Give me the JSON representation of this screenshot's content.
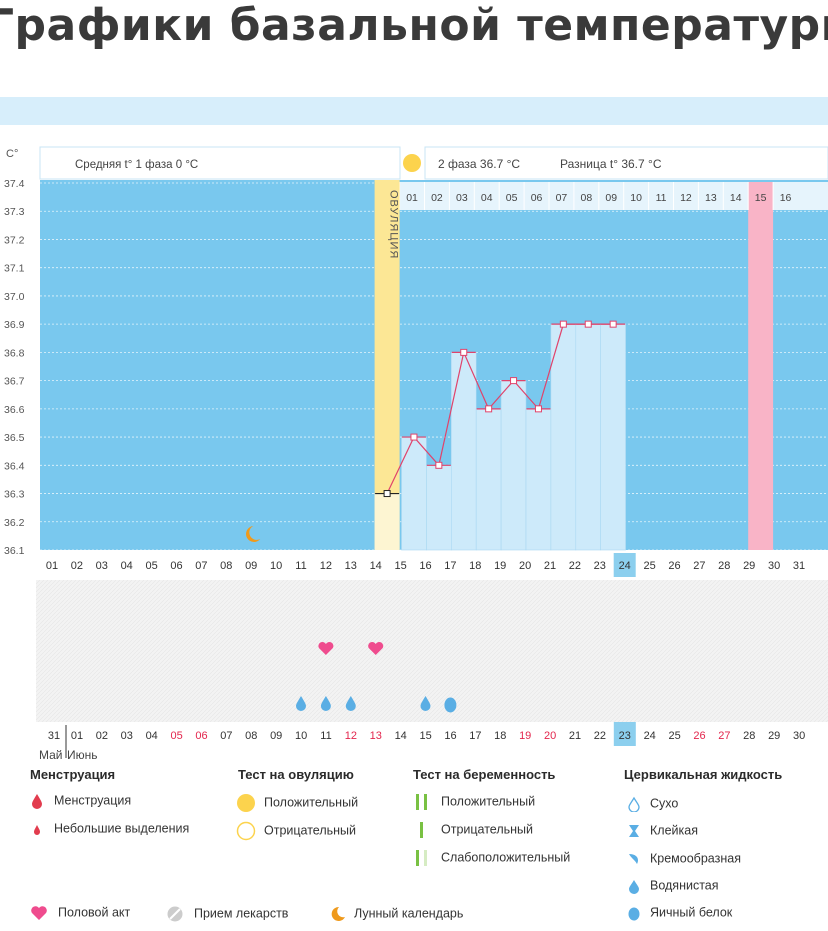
{
  "page": {
    "title": "Графики базальной температуры"
  },
  "header": {
    "unit": "C°",
    "phase1": "Средняя t° 1 фаза 0 °C",
    "phase2": "2 фаза 36.7 °C",
    "difference": "Разница t° 36.7 °C"
  },
  "colors": {
    "chart_bg": "#79c8ee",
    "phase2_bar": "#cdeafa",
    "ovulation": "#fce795",
    "ovulation_light": "#fdf5d2",
    "menstruation_pink": "#f9b4c7",
    "line": "#e0436b",
    "highlight_day": "#8ccfee",
    "heart": "#ef4c8e",
    "drop": "#5aaee4",
    "moon": "#ef9a1c",
    "sun": "#fcd34d",
    "test_green": "#79c143"
  },
  "chart_data": {
    "type": "line",
    "title": "Графики базальной температуры",
    "ylabel": "C°",
    "ylim": [
      36.1,
      37.4
    ],
    "y_ticks": [
      "37.4",
      "37.3",
      "37.2",
      "37.1",
      "37.0",
      "36.9",
      "36.8",
      "36.7",
      "36.6",
      "36.5",
      "36.4",
      "36.3",
      "36.2",
      "36.1"
    ],
    "cycle_days": [
      "01",
      "02",
      "03",
      "04",
      "05",
      "06",
      "07",
      "08",
      "09",
      "10",
      "11",
      "12",
      "13",
      "14",
      "15",
      "16",
      "17",
      "18",
      "19",
      "20",
      "21",
      "22",
      "23",
      "24",
      "25",
      "26",
      "27",
      "28",
      "29",
      "30",
      "31"
    ],
    "highlight_cycle_day": "24",
    "ovulation_day_index": 14,
    "ovulation_label": "ОВУЛЯЦИЯ",
    "phase2_days": [
      "01",
      "02",
      "03",
      "04",
      "05",
      "06",
      "07",
      "08",
      "09",
      "10",
      "11",
      "12",
      "13",
      "14",
      "15",
      "16"
    ],
    "phase2_pink_day": "15",
    "series": [
      {
        "name": "Температура",
        "points": [
          {
            "day_index": 14,
            "value": 36.3,
            "phase": "ovulation"
          },
          {
            "day_index": 15,
            "value": 36.5
          },
          {
            "day_index": 16,
            "value": 36.4
          },
          {
            "day_index": 17,
            "value": 36.8
          },
          {
            "day_index": 18,
            "value": 36.6
          },
          {
            "day_index": 19,
            "value": 36.7
          },
          {
            "day_index": 20,
            "value": 36.6
          },
          {
            "day_index": 21,
            "value": 36.9
          },
          {
            "day_index": 22,
            "value": 36.9
          },
          {
            "day_index": 23,
            "value": 36.9
          }
        ]
      }
    ],
    "moon_day_index": 8,
    "hearts_day_indices": [
      11,
      13
    ],
    "drops_day_indices": [
      10,
      11,
      12,
      15
    ],
    "egg_white_day_index": 16,
    "date_labels": [
      {
        "d": "31",
        "red": false
      },
      {
        "d": "01",
        "red": false
      },
      {
        "d": "02",
        "red": false
      },
      {
        "d": "03",
        "red": false
      },
      {
        "d": "04",
        "red": false
      },
      {
        "d": "05",
        "red": true
      },
      {
        "d": "06",
        "red": true
      },
      {
        "d": "07",
        "red": false
      },
      {
        "d": "08",
        "red": false
      },
      {
        "d": "09",
        "red": false
      },
      {
        "d": "10",
        "red": false
      },
      {
        "d": "11",
        "red": false
      },
      {
        "d": "12",
        "red": true
      },
      {
        "d": "13",
        "red": true
      },
      {
        "d": "14",
        "red": false
      },
      {
        "d": "15",
        "red": false
      },
      {
        "d": "16",
        "red": false
      },
      {
        "d": "17",
        "red": false
      },
      {
        "d": "18",
        "red": false
      },
      {
        "d": "19",
        "red": true
      },
      {
        "d": "20",
        "red": true
      },
      {
        "d": "21",
        "red": false
      },
      {
        "d": "22",
        "red": false
      },
      {
        "d": "23",
        "red": false
      },
      {
        "d": "24",
        "red": false
      },
      {
        "d": "25",
        "red": false
      },
      {
        "d": "26",
        "red": true
      },
      {
        "d": "27",
        "red": true
      },
      {
        "d": "28",
        "red": false
      },
      {
        "d": "29",
        "red": false
      },
      {
        "d": "30",
        "red": false
      }
    ],
    "highlight_date": "23",
    "month_labels": [
      "Май",
      "Июнь"
    ]
  },
  "legend": {
    "menstruation": {
      "title": "Менструация",
      "items": [
        "Менструация",
        "Небольшие выделения"
      ]
    },
    "ovulation_test": {
      "title": "Тест на овуляцию",
      "items": [
        "Положительный",
        "Отрицательный"
      ]
    },
    "pregnancy_test": {
      "title": "Тест на беременность",
      "items": [
        "Положительный",
        "Отрицательный",
        "Слабоположительный"
      ]
    },
    "cervical_fluid": {
      "title": "Цервикальная жидкость",
      "items": [
        "Сухо",
        "Клейкая",
        "Кремообразная",
        "Водянистая",
        "Яичный белок"
      ]
    },
    "other": [
      "Половой акт",
      "Прием лекарств",
      "Лунный календарь"
    ]
  }
}
